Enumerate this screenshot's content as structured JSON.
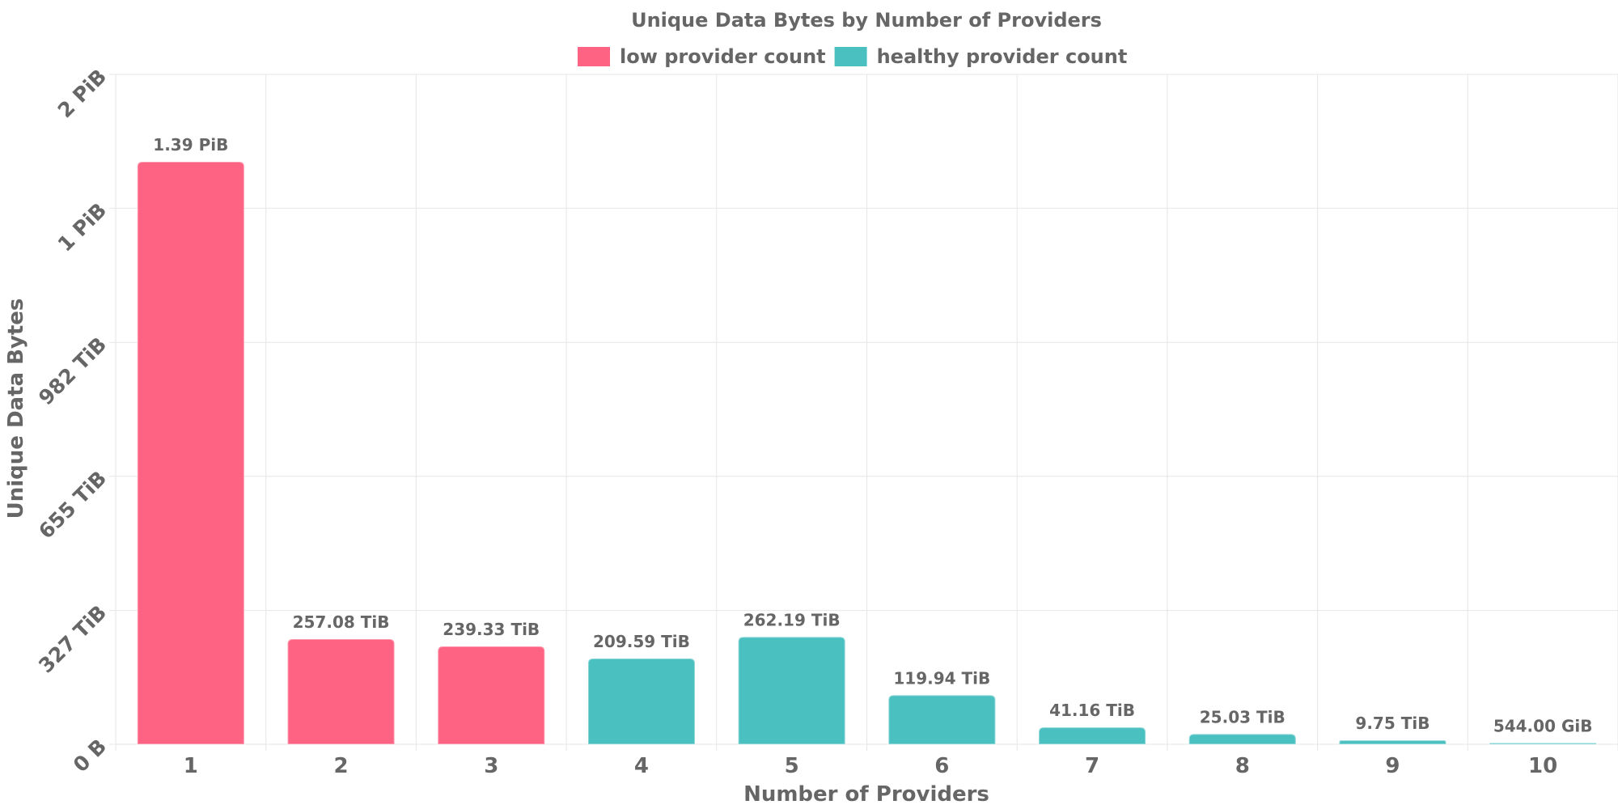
{
  "chart_data": {
    "type": "bar",
    "title": "Unique Data Bytes by Number of Providers",
    "xlabel": "Number of Providers",
    "ylabel": "Unique Data Bytes",
    "categories": [
      "1",
      "2",
      "3",
      "4",
      "5",
      "6",
      "7",
      "8",
      "9",
      "10"
    ],
    "values_tib": [
      1423.36,
      257.08,
      239.33,
      209.59,
      262.19,
      119.94,
      41.16,
      25.03,
      9.75,
      0.53
    ],
    "data_labels": [
      "1.39 PiB",
      "257.08 TiB",
      "239.33 TiB",
      "209.59 TiB",
      "262.19 TiB",
      "119.94 TiB",
      "41.16 TiB",
      "25.03 TiB",
      "9.75 TiB",
      "544.00 GiB"
    ],
    "bar_groups": [
      "low",
      "low",
      "low",
      "healthy",
      "healthy",
      "healthy",
      "healthy",
      "healthy",
      "healthy",
      "healthy"
    ],
    "legend": {
      "placement": "top-center",
      "entries": [
        {
          "key": "low",
          "label": "low provider count",
          "color": "#ff6384"
        },
        {
          "key": "healthy",
          "label": "healthy provider count",
          "color": "#4bc0c0"
        }
      ]
    },
    "y_ticks": [
      {
        "value_tib": 0,
        "label": "0 B"
      },
      {
        "value_tib": 327,
        "label": "327 TiB"
      },
      {
        "value_tib": 655,
        "label": "655 TiB"
      },
      {
        "value_tib": 982,
        "label": "982 TiB"
      },
      {
        "value_tib": 1310,
        "label": "1 PiB"
      },
      {
        "value_tib": 1637,
        "label": "2 PiB"
      }
    ],
    "ylim_tib": [
      0,
      1637
    ],
    "grid": true
  }
}
